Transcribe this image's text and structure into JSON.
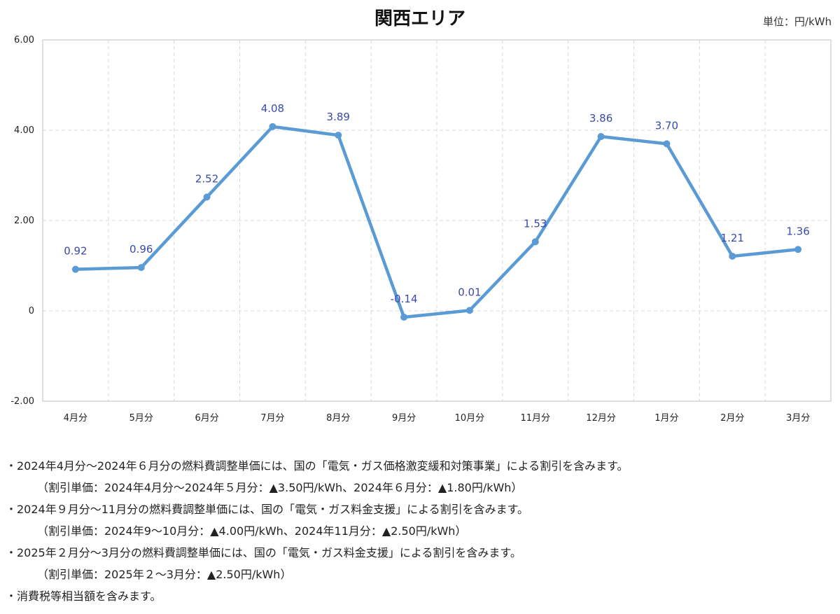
{
  "title": "関西エリア",
  "unit": "単位：円/kWh",
  "chart_data": {
    "type": "line",
    "title": "関西エリア",
    "categories": [
      "4月分",
      "5月分",
      "6月分",
      "7月分",
      "8月分",
      "9月分",
      "10月分",
      "11月分",
      "12月分",
      "1月分",
      "2月分",
      "3月分"
    ],
    "values": [
      0.92,
      0.96,
      2.52,
      4.08,
      3.89,
      -0.14,
      0.01,
      1.53,
      3.86,
      3.7,
      1.21,
      1.36
    ],
    "value_labels": [
      "0.92",
      "0.96",
      "2.52",
      "4.08",
      "3.89",
      "-0.14",
      "0.01",
      "1.53",
      "3.86",
      "3.70",
      "1.21",
      "1.36"
    ],
    "ylim": [
      -2,
      6
    ],
    "yticks": [
      6,
      4,
      2,
      0,
      -2
    ],
    "ytick_labels": [
      "6.00",
      "4.00",
      "2.00",
      "0",
      "-2.00"
    ],
    "grid": true,
    "line_color": "#5b9bd5",
    "label_color": "#3a4aa8"
  },
  "notes": [
    {
      "text": "・2024年4月分～2024年６月分の燃料費調整単価には、国の「電気・ガス価格激変緩和対策事業」による割引を含みます。",
      "sub": false
    },
    {
      "text": "（割引単価：2024年4月分～2024年５月分：▲3.50円/kWh、2024年６月分：▲1.80円/kWh）",
      "sub": true
    },
    {
      "text": "・2024年９月分～11月分の燃料費調整単価には、国の「電気・ガス料金支援」による割引を含みます。",
      "sub": false
    },
    {
      "text": "（割引単価：2024年9～10月分：▲4.00円/kWh、2024年11月分：▲2.50円/kWh）",
      "sub": true
    },
    {
      "text": "・2025年２月分～3月分の燃料費調整単価には、国の「電気・ガス料金支援」による割引を含みます。",
      "sub": false
    },
    {
      "text": "（割引単価：2025年２～3月分：▲2.50円/kWh）",
      "sub": true
    },
    {
      "text": "・消費税等相当額を含みます。",
      "sub": false
    }
  ]
}
